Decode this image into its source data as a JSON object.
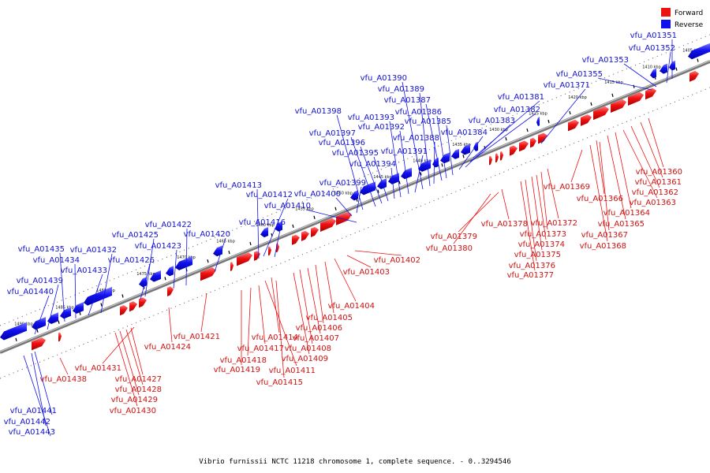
{
  "legend": {
    "items": [
      {
        "label": "Forward",
        "color": "#ee1111"
      },
      {
        "label": "Reverse",
        "color": "#1111ee"
      }
    ]
  },
  "caption": "Vibrio furnissii NCTC 11218 chromosome 1, complete sequence. - 0..3294546",
  "scale_labels": [
    "1405 kbp",
    "1410 kbp",
    "1415 kbp",
    "1420 kbp",
    "1425 kbp",
    "1430 kbp",
    "1435 kbp",
    "1440 kbp",
    "1445 kbp",
    "1450 kbp",
    "1455 kbp",
    "1460 kbp",
    "1465 kbp",
    "1470 kbp",
    "1475 kbp",
    "1480 kbp",
    "1485 kbp",
    "1490 kbp"
  ],
  "reverse_genes": [
    "vfu_A01351",
    "vfu_A01352",
    "vfu_A01353",
    "vfu_A01355",
    "vfu_A01371",
    "vfu_A01381",
    "vfu_A01382",
    "vfu_A01383",
    "vfu_A01384",
    "vfu_A01385",
    "vfu_A01386",
    "vfu_A01387",
    "vfu_A01388",
    "vfu_A01389",
    "vfu_A01390",
    "vfu_A01391",
    "vfu_A01392",
    "vfu_A01393",
    "vfu_A01394",
    "vfu_A01395",
    "vfu_A01396",
    "vfu_A01397",
    "vfu_A01398",
    "vfu_A01399",
    "vfu_A01400",
    "vfu_A01410",
    "vfu_A01412",
    "vfu_A01413",
    "vfu_A01416",
    "vfu_A01420",
    "vfu_A01422",
    "vfu_A01423",
    "vfu_A01425",
    "vfu_A01426",
    "vfu_A01432",
    "vfu_A01433",
    "vfu_A01434",
    "vfu_A01435",
    "vfu_A01439",
    "vfu_A01440",
    "vfu_A01441",
    "vfu_A01442",
    "vfu_A01443"
  ],
  "forward_genes": [
    "vfu_A01360",
    "vfu_A01361",
    "vfu_A01362",
    "vfu_A01363",
    "vfu_A01364",
    "vfu_A01365",
    "vfu_A01366",
    "vfu_A01367",
    "vfu_A01368",
    "vfu_A01369",
    "vfu_A01372",
    "vfu_A01373",
    "vfu_A01374",
    "vfu_A01375",
    "vfu_A01376",
    "vfu_A01377",
    "vfu_A01378",
    "vfu_A01379",
    "vfu_A01380",
    "vfu_A01402",
    "vfu_A01403",
    "vfu_A01404",
    "vfu_A01405",
    "vfu_A01406",
    "vfu_A01407",
    "vfu_A01408",
    "vfu_A01409",
    "vfu_A01411",
    "vfu_A01414",
    "vfu_A01415",
    "vfu_A01417",
    "vfu_A01418",
    "vfu_A01419",
    "vfu_A01421",
    "vfu_A01424",
    "vfu_A01427",
    "vfu_A01428",
    "vfu_A01429",
    "vfu_A01430",
    "vfu_A01431",
    "vfu_A01438"
  ]
}
